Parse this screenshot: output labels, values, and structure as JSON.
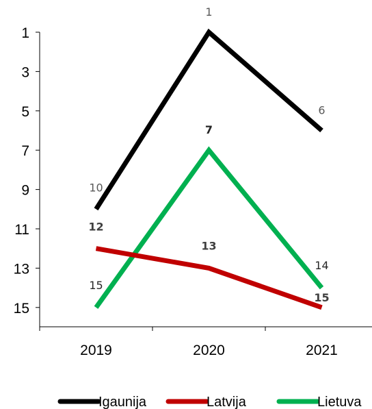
{
  "chart_data": {
    "type": "line",
    "categories": [
      "2019",
      "2020",
      "2021"
    ],
    "y_axis": {
      "reversed": true,
      "min": 1,
      "max": 16,
      "ticks": [
        1,
        3,
        5,
        7,
        9,
        11,
        13,
        15
      ]
    },
    "grid": false,
    "legend_position": "bottom",
    "series": [
      {
        "name": "Igaunija",
        "color": "#000000",
        "values": [
          10,
          1,
          6
        ],
        "labels": [
          "10",
          "1",
          "6"
        ],
        "label_color": "#595959",
        "label_bold": [
          false,
          false,
          false
        ]
      },
      {
        "name": "Latvija",
        "color": "#c00000",
        "values": [
          12,
          13,
          15
        ],
        "labels": [
          "12",
          "13",
          "15"
        ],
        "label_color": "#404040",
        "label_bold": [
          true,
          true,
          true
        ]
      },
      {
        "name": "Lietuva",
        "color": "#00b050",
        "values": [
          15,
          7,
          14
        ],
        "labels": [
          "15",
          "7",
          "14"
        ],
        "label_color": "#262626",
        "label_bold": [
          false,
          true,
          false
        ]
      }
    ]
  }
}
